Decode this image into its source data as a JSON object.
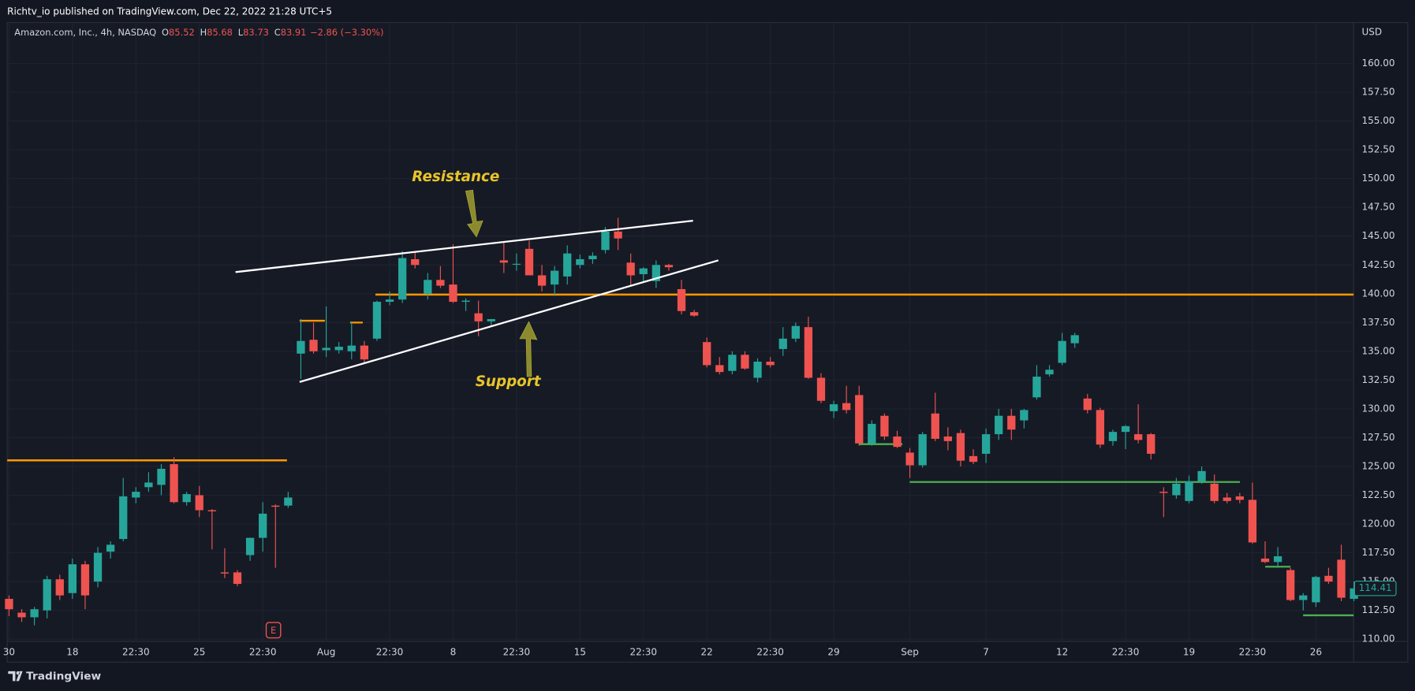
{
  "header": {
    "published": "Richtv_io published on TradingView.com, Dec 22, 2022 21:28 UTC+5"
  },
  "footer": {
    "brand": "TradingView"
  },
  "chart_data": {
    "type": "candlestick",
    "title": "Amazon.com, Inc., 4h, NASDAQ",
    "ohlc_letters": [
      "O",
      "H",
      "L",
      "C"
    ],
    "ohlc_last": [
      85.52,
      85.68,
      83.73,
      83.91
    ],
    "change": "−2.86 (−3.30%)",
    "currency": "USD",
    "last_price": 114.41,
    "earnings_marker": "E",
    "annotations": [
      "Resistance",
      "Support"
    ],
    "up_color": "#26a69a",
    "down_color": "#ef5350",
    "grid": true,
    "categories": [
      "30",
      null,
      null,
      null,
      null,
      "18",
      null,
      null,
      null,
      null,
      "22:30",
      null,
      null,
      null,
      null,
      "25",
      null,
      null,
      null,
      null,
      "22:30",
      null,
      null,
      null,
      null,
      "Aug",
      null,
      null,
      null,
      null,
      "22:30",
      null,
      null,
      null,
      null,
      "8",
      null,
      null,
      null,
      null,
      "22:30",
      null,
      null,
      null,
      null,
      "15",
      null,
      null,
      null,
      null,
      "22:30",
      null,
      null,
      null,
      null,
      "22",
      null,
      null,
      null,
      null,
      "22:30",
      null,
      null,
      null,
      null,
      "29",
      null,
      null,
      null,
      null,
      null,
      "Sep",
      null,
      null,
      null,
      null,
      null,
      "7",
      null,
      null,
      null,
      null,
      null,
      "12",
      null,
      null,
      null,
      null,
      "22:30",
      null,
      null,
      null,
      null,
      "19",
      null,
      null,
      null,
      null,
      "22:30",
      null,
      null,
      null,
      null,
      "26",
      null,
      null,
      null
    ],
    "open": [
      113.5,
      112.3,
      111.9,
      112.5,
      115.2,
      114.0,
      116.5,
      115.0,
      117.6,
      118.7,
      122.3,
      123.2,
      123.4,
      125.2,
      121.9,
      122.5,
      121.2,
      115.8,
      115.8,
      117.3,
      118.8,
      121.6,
      121.6,
      134.8,
      136.0,
      135.1,
      135.1,
      135.0,
      135.5,
      136.1,
      139.3,
      139.5,
      143.0,
      140.0,
      141.2,
      140.8,
      139.3,
      138.3,
      137.6,
      142.9,
      142.6,
      143.9,
      141.6,
      140.8,
      141.5,
      142.5,
      143.0,
      143.8,
      145.4,
      142.7,
      141.7,
      141.1,
      142.5,
      140.4,
      138.4,
      135.8,
      133.8,
      133.3,
      134.7,
      132.7,
      134.1,
      135.2,
      136.1,
      137.1,
      132.7,
      129.8,
      130.5,
      131.2,
      127.0,
      129.4,
      127.6,
      126.2,
      125.1,
      129.6,
      127.6,
      127.9,
      125.9,
      126.1,
      127.8,
      129.4,
      129.0,
      131.0,
      133.0,
      134.0,
      135.7,
      130.9,
      129.9,
      127.2,
      128.0,
      127.8,
      127.8,
      122.8,
      122.5,
      122.0,
      123.7,
      123.5,
      122.3,
      122.4,
      122.1,
      117.0,
      116.7,
      116.0,
      113.4,
      113.2,
      115.5,
      116.9,
      113.5
    ],
    "high": [
      113.8,
      112.6,
      112.8,
      115.5,
      115.6,
      117.0,
      116.8,
      118.0,
      118.5,
      124.0,
      123.2,
      124.5,
      125.2,
      125.8,
      122.8,
      123.3,
      121.3,
      117.9,
      116.0,
      118.8,
      121.9,
      121.7,
      122.8,
      137.8,
      137.5,
      138.9,
      135.8,
      137.6,
      135.9,
      139.4,
      140.2,
      143.7,
      143.6,
      141.8,
      142.4,
      144.3,
      139.6,
      139.4,
      137.8,
      144.5,
      143.5,
      144.6,
      142.5,
      142.4,
      144.2,
      143.4,
      143.6,
      145.8,
      146.6,
      143.5,
      142.3,
      142.9,
      142.6,
      141.2,
      138.6,
      136.2,
      134.5,
      135.0,
      135.0,
      134.4,
      134.5,
      137.1,
      137.5,
      138.0,
      133.1,
      130.7,
      132.0,
      132.0,
      129.0,
      129.6,
      128.1,
      126.6,
      128.0,
      131.4,
      128.4,
      128.2,
      126.5,
      128.3,
      130.0,
      130.0,
      130.0,
      133.8,
      133.8,
      136.6,
      136.6,
      131.3,
      130.1,
      128.2,
      128.6,
      130.4,
      127.9,
      123.2,
      124.0,
      124.2,
      125.0,
      124.3,
      122.7,
      122.7,
      123.6,
      118.5,
      118.0,
      116.2,
      114.0,
      115.5,
      116.2,
      118.2,
      115.0
    ],
    "low": [
      112.0,
      111.5,
      111.2,
      111.8,
      113.4,
      113.5,
      112.6,
      114.5,
      117.0,
      118.5,
      121.8,
      122.8,
      122.5,
      121.8,
      121.6,
      120.6,
      117.8,
      115.3,
      114.6,
      116.8,
      117.6,
      116.2,
      121.4,
      132.6,
      134.8,
      134.5,
      134.8,
      134.3,
      134.0,
      135.9,
      139.0,
      139.2,
      142.2,
      139.5,
      140.5,
      139.2,
      138.5,
      136.3,
      137.2,
      141.8,
      142.0,
      141.6,
      140.2,
      139.8,
      140.8,
      142.2,
      142.6,
      143.5,
      143.8,
      140.7,
      141.0,
      140.5,
      142.0,
      138.2,
      138.0,
      133.6,
      133.0,
      133.0,
      133.4,
      132.3,
      133.6,
      134.6,
      135.8,
      132.6,
      130.5,
      129.2,
      129.6,
      126.8,
      126.8,
      127.3,
      126.6,
      124.0,
      124.9,
      127.2,
      126.4,
      125.0,
      125.2,
      125.3,
      127.3,
      127.3,
      128.3,
      130.8,
      132.8,
      133.8,
      135.3,
      129.6,
      126.6,
      126.8,
      126.5,
      127.0,
      125.6,
      120.6,
      122.2,
      121.8,
      123.5,
      121.8,
      121.8,
      121.8,
      118.3,
      116.6,
      116.2,
      113.3,
      112.5,
      112.8,
      114.8,
      113.3,
      113.3
    ],
    "close": [
      112.6,
      111.9,
      112.6,
      115.2,
      113.8,
      116.5,
      113.8,
      117.5,
      118.2,
      122.4,
      122.8,
      123.6,
      124.8,
      121.9,
      122.6,
      121.2,
      121.1,
      115.7,
      114.8,
      118.8,
      120.9,
      121.5,
      122.3,
      135.9,
      135.0,
      135.3,
      135.4,
      135.5,
      134.3,
      139.3,
      139.5,
      143.1,
      142.5,
      141.2,
      140.7,
      139.3,
      139.4,
      137.6,
      137.8,
      142.7,
      142.6,
      141.6,
      140.7,
      142.0,
      143.5,
      143.0,
      143.3,
      145.4,
      144.8,
      141.6,
      142.2,
      142.5,
      142.3,
      138.5,
      138.1,
      133.8,
      133.2,
      134.7,
      133.5,
      134.1,
      133.8,
      136.1,
      137.2,
      132.7,
      130.7,
      130.4,
      129.9,
      127.0,
      128.7,
      127.6,
      126.7,
      125.1,
      127.8,
      127.4,
      127.2,
      125.5,
      125.4,
      127.8,
      129.4,
      128.2,
      129.9,
      132.8,
      133.4,
      135.9,
      136.4,
      129.9,
      126.9,
      128.0,
      128.5,
      127.3,
      126.1,
      122.7,
      123.5,
      123.7,
      124.6,
      122.0,
      122.0,
      122.1,
      118.4,
      116.7,
      117.2,
      113.4,
      113.8,
      115.4,
      115.0,
      113.6,
      114.41
    ],
    "ylim": [
      109.8,
      163.4
    ],
    "yticks": [
      {
        "value": 110,
        "label": "110.00"
      },
      {
        "value": 112.5,
        "label": "112.50"
      },
      {
        "value": 115,
        "label": "115.00"
      },
      {
        "value": 117.5,
        "label": "117.50"
      },
      {
        "value": 120,
        "label": "120.00"
      },
      {
        "value": 122.5,
        "label": "122.50"
      },
      {
        "value": 125,
        "label": "125.00"
      },
      {
        "value": 127.5,
        "label": "127.50"
      },
      {
        "value": 130,
        "label": "130.00"
      },
      {
        "value": 132.5,
        "label": "132.50"
      },
      {
        "value": 135,
        "label": "135.00"
      },
      {
        "value": 137.5,
        "label": "137.50"
      },
      {
        "value": 140,
        "label": "140.00"
      },
      {
        "value": 142.5,
        "label": "142.50"
      },
      {
        "value": 145,
        "label": "145.00"
      },
      {
        "value": 147.5,
        "label": "147.50"
      },
      {
        "value": 150,
        "label": "150.00"
      },
      {
        "value": 152.5,
        "label": "152.50"
      },
      {
        "value": 155,
        "label": "155.00"
      },
      {
        "value": 157.5,
        "label": "157.50"
      },
      {
        "value": 160,
        "label": "160.00"
      }
    ]
  }
}
